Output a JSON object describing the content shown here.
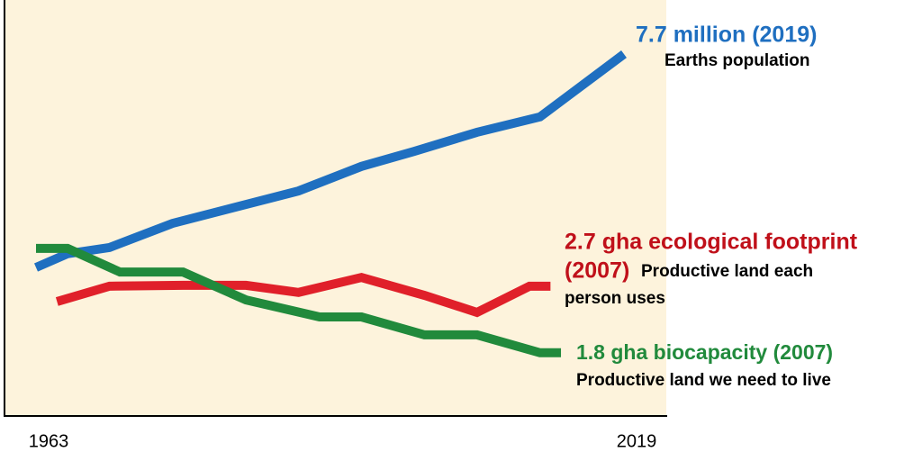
{
  "chart_data": {
    "type": "line",
    "xlim": [
      1963,
      2019
    ],
    "xticks": [
      1963,
      2019
    ],
    "ylim": [
      0,
      100
    ],
    "background": "#fdf3dc",
    "series": [
      {
        "color": "#1f6fc0",
        "x": [
          1963,
          1966,
          1970,
          1976,
          1982,
          1988,
          1994,
          1999,
          2005,
          2011,
          2019
        ],
        "values": [
          35.7,
          39,
          40.5,
          46.3,
          50.2,
          54.1,
          60,
          63.6,
          68.2,
          71.9,
          87
        ]
      },
      {
        "color": "#e0202a",
        "x": [
          1965,
          1970,
          1977,
          1983,
          1988,
          1994,
          2000,
          2005,
          2010,
          2012
        ],
        "values": [
          27.5,
          31.2,
          31.4,
          31.4,
          29.7,
          33.3,
          29,
          24.9,
          31.2,
          31.2
        ]
      },
      {
        "color": "#218a3c",
        "x": [
          1963,
          1966,
          1971,
          1977,
          1983,
          1990,
          1994,
          2000,
          2005,
          2011,
          2013
        ],
        "values": [
          40.3,
          40.3,
          34.6,
          34.6,
          27.9,
          23.8,
          23.8,
          19.5,
          19.5,
          15.2,
          15.2
        ]
      }
    ],
    "annotations": [
      {
        "text": "7.7 million (2019)",
        "color": "#1f6fc0"
      },
      {
        "text": "Earths population",
        "color": "#000000"
      },
      {
        "text": "2.7 gha ecological footprint",
        "color": "#c0101a"
      },
      {
        "text": "(2007)",
        "color": "#c0101a"
      },
      {
        "text": "Productive land each",
        "color": "#000000"
      },
      {
        "text": "person uses",
        "color": "#000000"
      },
      {
        "text": "1.8 gha biocapacity (2007)",
        "color": "#218a3c"
      },
      {
        "text": "Productive land we need to live",
        "color": "#000000"
      }
    ]
  }
}
